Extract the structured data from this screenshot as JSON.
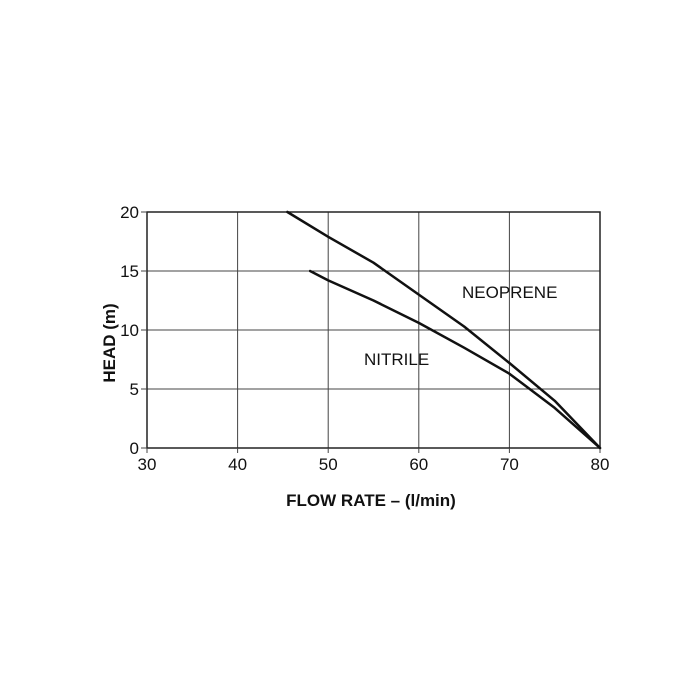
{
  "chart_data": {
    "type": "line",
    "title": "",
    "xlabel": "FLOW RATE – (l/min)",
    "ylabel": "HEAD (m)",
    "xlim": [
      30,
      80
    ],
    "ylim": [
      0,
      20
    ],
    "xticks": [
      "30",
      "40",
      "50",
      "60",
      "70",
      "80"
    ],
    "yticks": [
      "0",
      "5",
      "10",
      "15",
      "20"
    ],
    "grid": true,
    "series": [
      {
        "name": "NEOPRENE",
        "x": [
          45.5,
          50,
          55,
          60,
          65,
          70,
          75,
          80
        ],
        "y": [
          20,
          17.9,
          15.7,
          13.0,
          10.3,
          7.2,
          4.0,
          0
        ]
      },
      {
        "name": "NITRILE",
        "x": [
          48,
          50,
          55,
          60,
          65,
          70,
          75,
          80
        ],
        "y": [
          15,
          14.2,
          12.5,
          10.6,
          8.5,
          6.3,
          3.4,
          0
        ]
      }
    ]
  }
}
